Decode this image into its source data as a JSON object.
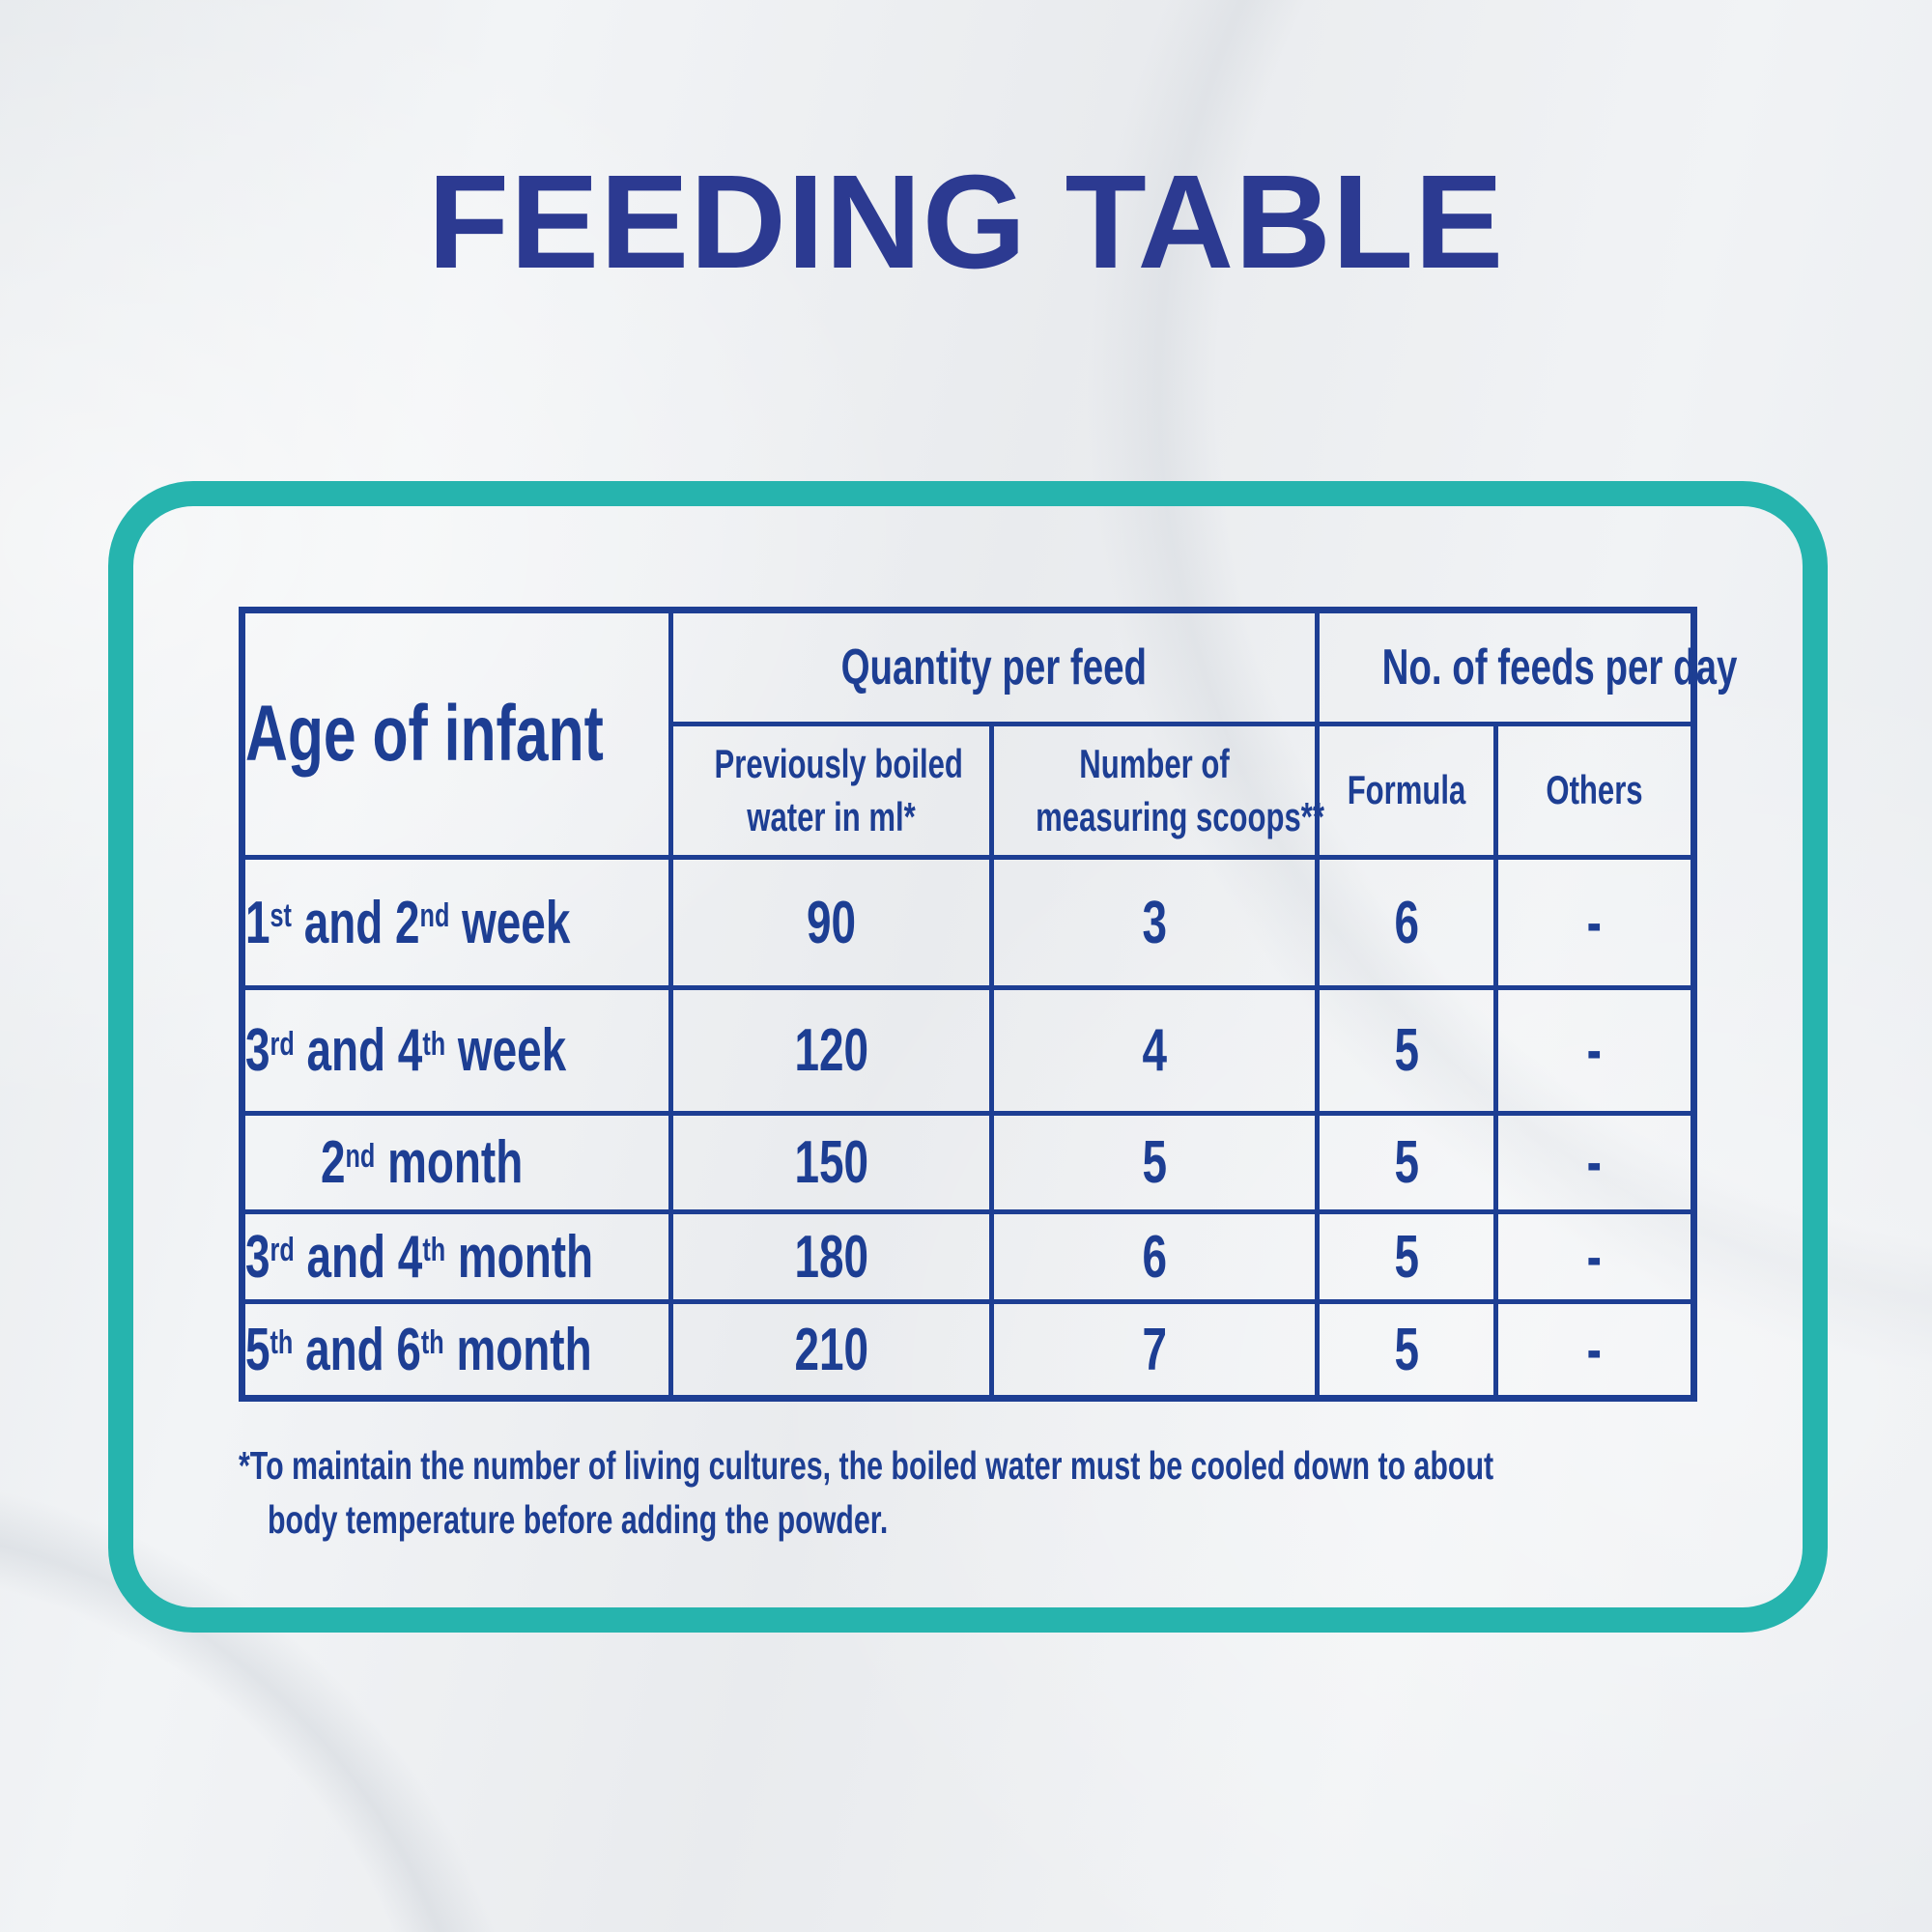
{
  "title": "FEEDING TABLE",
  "colors": {
    "title_blue": "#2c3a91",
    "table_blue": "#1d3e93",
    "frame_teal": "#26b4ae",
    "background": "#eceef0"
  },
  "table": {
    "corner_header": "Age of infant",
    "group_headers": [
      {
        "label": "Quantity per feed",
        "colspan": 2
      },
      {
        "label": "No. of feeds per day",
        "colspan": 2
      }
    ],
    "sub_headers": [
      {
        "id": "previously-boiled-water",
        "lines": [
          "Previously boiled",
          "water in ml*"
        ]
      },
      {
        "id": "measuring-scoops",
        "lines": [
          "Number of",
          "measuring scoops**"
        ]
      },
      {
        "id": "formula",
        "lines": [
          "Formula"
        ]
      },
      {
        "id": "others",
        "lines": [
          "Others"
        ]
      }
    ],
    "rows": [
      {
        "age_parts": [
          {
            "text": "1",
            "sup": "st"
          },
          {
            "text": " and 2",
            "sup": "nd"
          },
          {
            "text": " week"
          }
        ],
        "water_ml": "90",
        "scoops": "3",
        "formula": "6",
        "others": "-"
      },
      {
        "age_parts": [
          {
            "text": "3",
            "sup": "rd"
          },
          {
            "text": " and 4",
            "sup": "th"
          },
          {
            "text": " week"
          }
        ],
        "water_ml": "120",
        "scoops": "4",
        "formula": "5",
        "others": "-"
      },
      {
        "age_parts": [
          {
            "text": "2",
            "sup": "nd"
          },
          {
            "text": " month"
          }
        ],
        "water_ml": "150",
        "scoops": "5",
        "formula": "5",
        "others": "-"
      },
      {
        "age_parts": [
          {
            "text": "3",
            "sup": "rd"
          },
          {
            "text": " and 4",
            "sup": "th"
          },
          {
            "text": " month"
          }
        ],
        "water_ml": "180",
        "scoops": "6",
        "formula": "5",
        "others": "-"
      },
      {
        "age_parts": [
          {
            "text": "5",
            "sup": "th"
          },
          {
            "text": " and 6",
            "sup": "th"
          },
          {
            "text": " month"
          }
        ],
        "water_ml": "210",
        "scoops": "7",
        "formula": "5",
        "others": "-"
      }
    ]
  },
  "footnote_lines": [
    "*To maintain the number of living cultures, the boiled water must be cooled down to about",
    "body temperature before adding the powder."
  ]
}
